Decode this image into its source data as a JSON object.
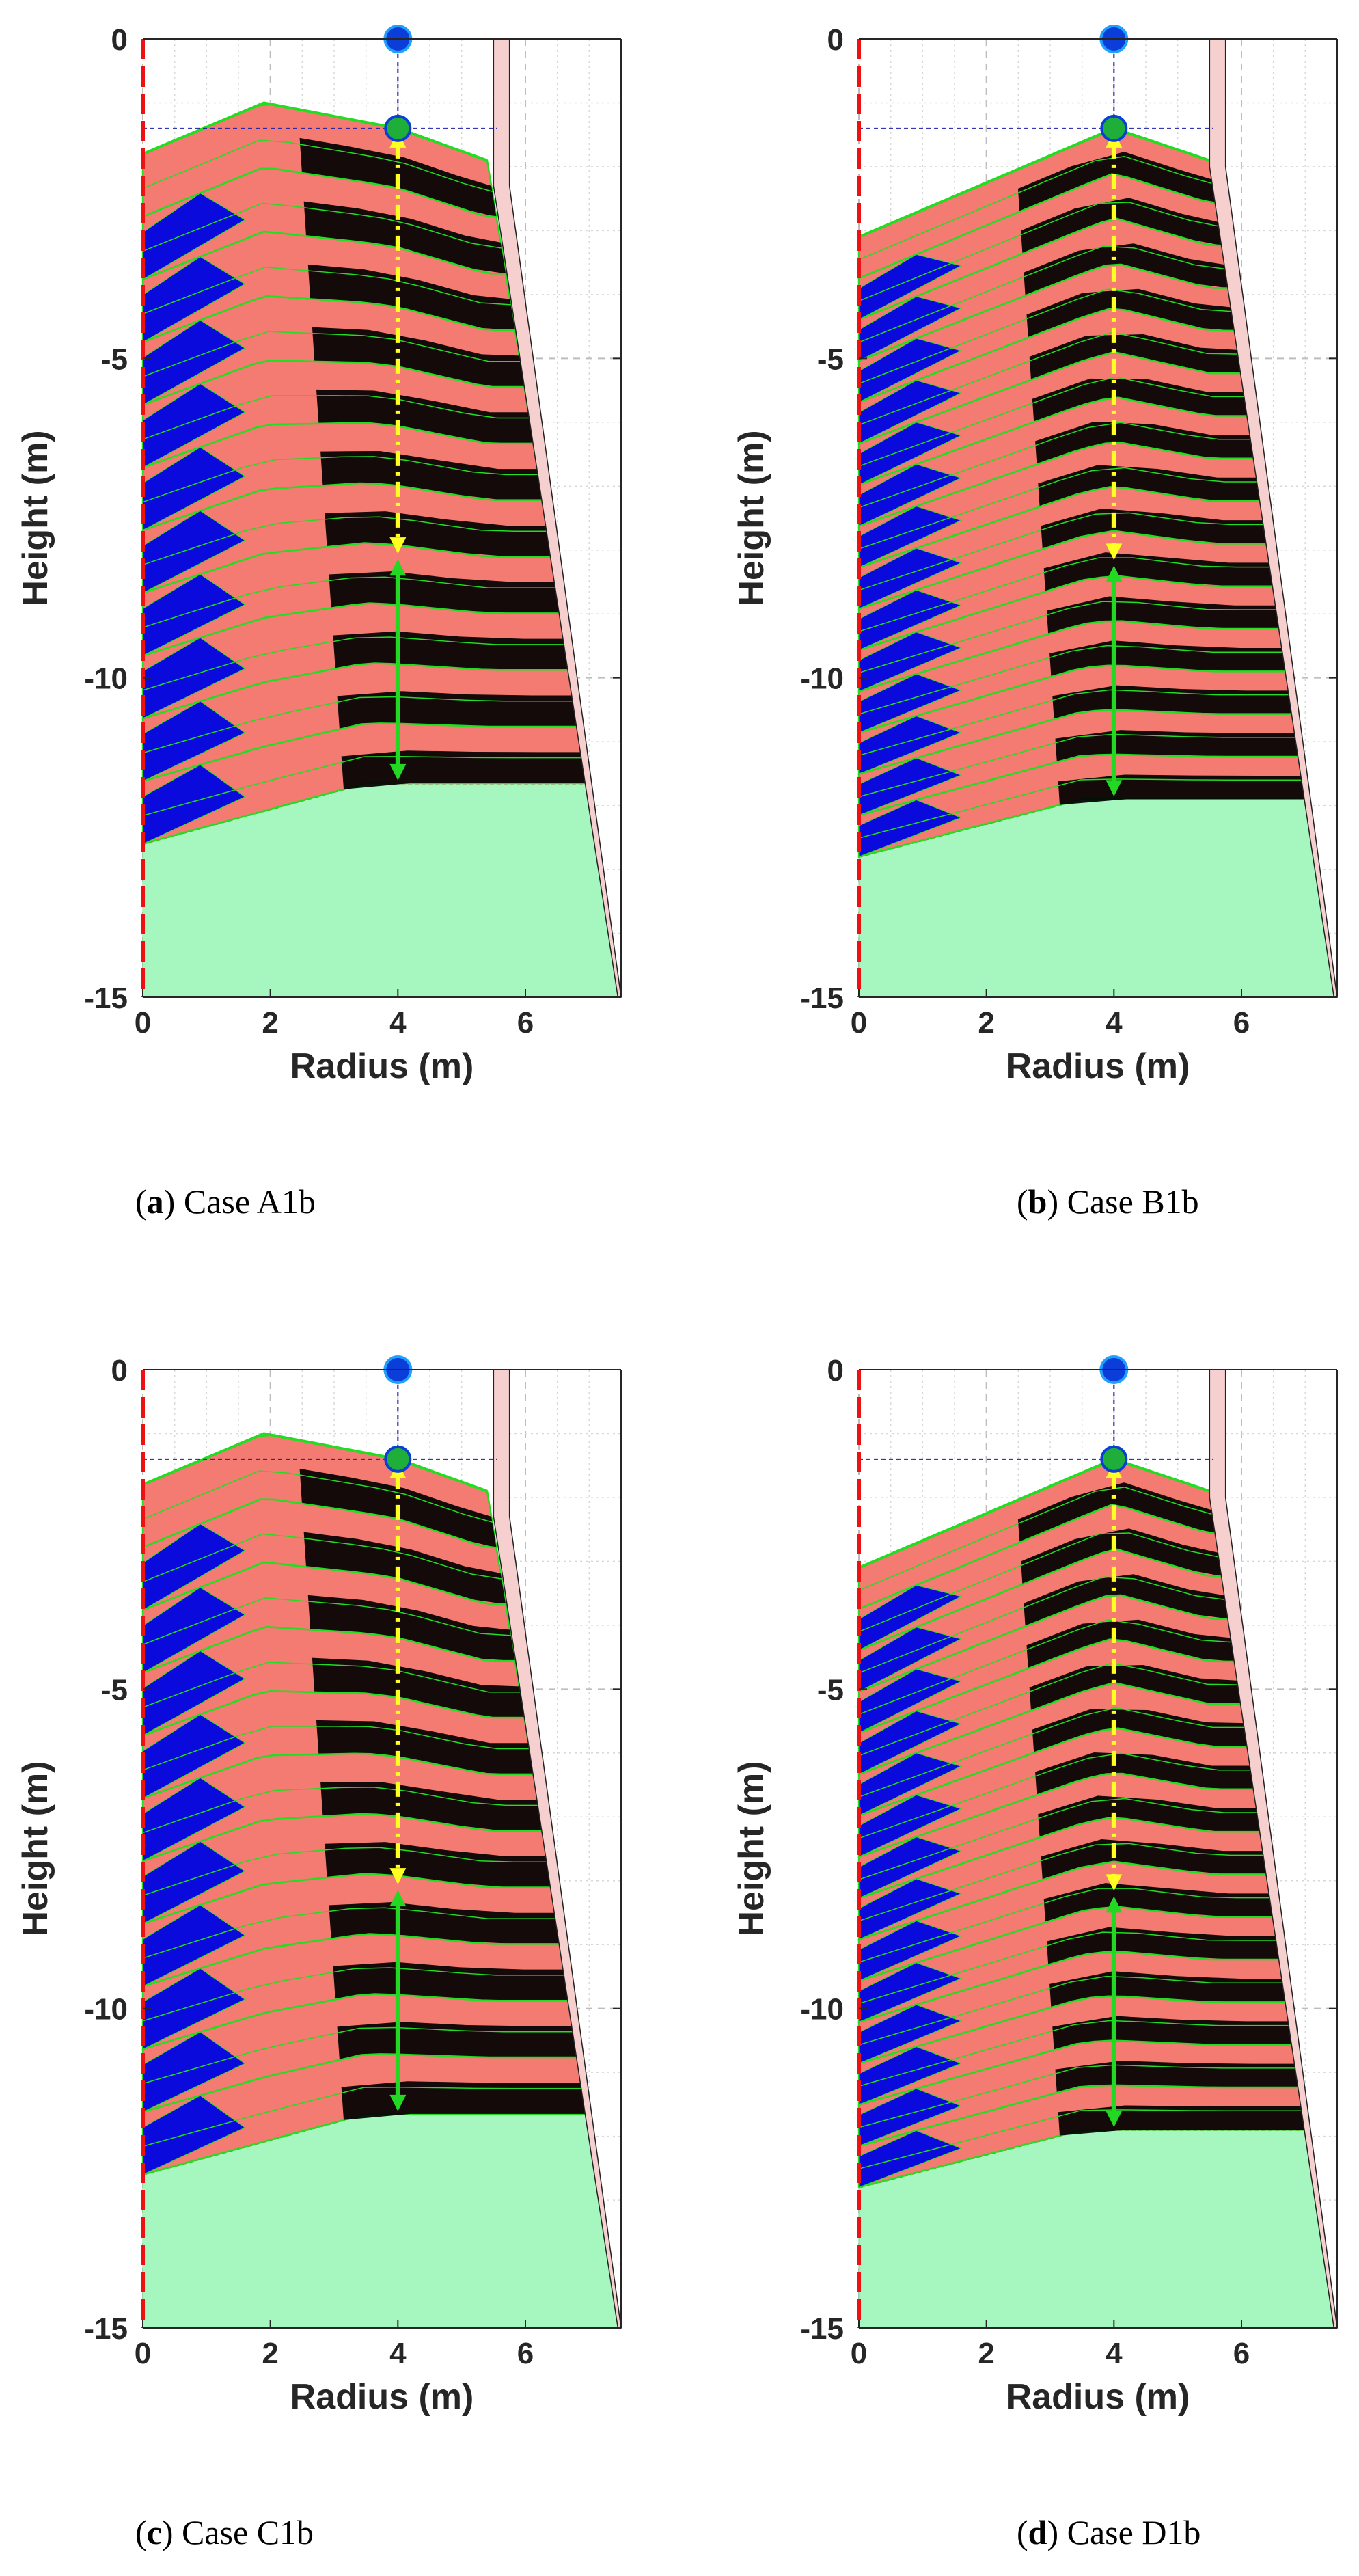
{
  "figure": {
    "panels": [
      {
        "id": "a",
        "caption_letter": "a",
        "caption_text": " Case A1b"
      },
      {
        "id": "b",
        "caption_letter": "b",
        "caption_text": " Case B1b"
      },
      {
        "id": "c",
        "caption_letter": "c",
        "caption_text": " Case C1b"
      },
      {
        "id": "d",
        "caption_letter": "d",
        "caption_text": " Case D1b"
      }
    ]
  },
  "colors": {
    "layer": "#f47b72",
    "dark_band": "#000000",
    "blue_wedge": "#0a0adc",
    "edge_green": "#22dd22",
    "base_fill": "#a6f7bf",
    "wall": "#f6cfcf",
    "probe_dot": "#0b3ed8",
    "yellow_arrow": "#ffff22",
    "green_arrow": "#22d822",
    "guide_line": "#1a1aa8",
    "axis_left_red": "#ee1111"
  },
  "chart_data": [
    {
      "type": "area",
      "panel": "a",
      "title": "",
      "xlabel": "Radius (m)",
      "ylabel": "Height (m)",
      "xlim": [
        0,
        7.5
      ],
      "ylim": [
        -15,
        0
      ],
      "xticks": [
        0,
        2,
        4,
        6
      ],
      "yticks": [
        0,
        -5,
        -10,
        -15
      ],
      "grid": true,
      "layer_count": 11,
      "top_profile": [
        [
          0,
          -1.8
        ],
        [
          1.9,
          -1.0
        ],
        [
          4.0,
          -1.4
        ],
        [
          5.4,
          -1.9
        ]
      ],
      "base_profile": [
        [
          0,
          -12.6
        ],
        [
          3.5,
          -11.65
        ],
        [
          7.0,
          -11.65
        ]
      ],
      "wall": {
        "top_radius": 5.5,
        "bottom_radius": 7.45,
        "break_height": -2.3
      },
      "probe_top": [
        4.0,
        0
      ],
      "probe_surface": [
        4.0,
        -1.4
      ],
      "yellow_arrow_y": [
        -1.4,
        -8.1
      ],
      "green_arrow_y": [
        -8.1,
        -11.65
      ]
    },
    {
      "type": "area",
      "panel": "b",
      "title": "",
      "xlabel": "Radius (m)",
      "ylabel": "Height (m)",
      "xlim": [
        0,
        7.5
      ],
      "ylim": [
        -15,
        0
      ],
      "xticks": [
        0,
        2,
        4,
        6
      ],
      "yticks": [
        0,
        -5,
        -10,
        -15
      ],
      "grid": true,
      "layer_count": 15,
      "top_profile": [
        [
          0,
          -3.1
        ],
        [
          4.0,
          -1.4
        ],
        [
          5.5,
          -1.9
        ]
      ],
      "base_profile": [
        [
          0,
          -12.8
        ],
        [
          3.5,
          -11.9
        ],
        [
          7.0,
          -11.9
        ]
      ],
      "wall": {
        "top_radius": 5.5,
        "bottom_radius": 7.45,
        "break_height": -2.0
      },
      "probe_top": [
        4.0,
        0
      ],
      "probe_surface": [
        4.0,
        -1.4
      ],
      "yellow_arrow_y": [
        -1.4,
        -8.2
      ],
      "green_arrow_y": [
        -8.2,
        -11.9
      ]
    },
    {
      "type": "area",
      "panel": "c",
      "title": "",
      "xlabel": "Radius (m)",
      "ylabel": "Height (m)",
      "xlim": [
        0,
        7.5
      ],
      "ylim": [
        -15,
        0
      ],
      "xticks": [
        0,
        2,
        4,
        6
      ],
      "yticks": [
        0,
        -5,
        -10,
        -15
      ],
      "grid": true,
      "layer_count": 11,
      "top_profile": [
        [
          0,
          -1.8
        ],
        [
          1.9,
          -1.0
        ],
        [
          4.0,
          -1.4
        ],
        [
          5.4,
          -1.9
        ]
      ],
      "base_profile": [
        [
          0,
          -12.6
        ],
        [
          3.5,
          -11.65
        ],
        [
          7.0,
          -11.65
        ]
      ],
      "wall": {
        "top_radius": 5.5,
        "bottom_radius": 7.45,
        "break_height": -2.3
      },
      "probe_top": [
        4.0,
        0
      ],
      "probe_surface": [
        4.0,
        -1.4
      ],
      "yellow_arrow_y": [
        -1.4,
        -8.1
      ],
      "green_arrow_y": [
        -8.1,
        -11.65
      ]
    },
    {
      "type": "area",
      "panel": "d",
      "title": "",
      "xlabel": "Radius (m)",
      "ylabel": "Height (m)",
      "xlim": [
        0,
        7.5
      ],
      "ylim": [
        -15,
        0
      ],
      "xticks": [
        0,
        2,
        4,
        6
      ],
      "yticks": [
        0,
        -5,
        -10,
        -15
      ],
      "grid": true,
      "layer_count": 15,
      "top_profile": [
        [
          0,
          -3.1
        ],
        [
          4.0,
          -1.4
        ],
        [
          5.5,
          -1.9
        ]
      ],
      "base_profile": [
        [
          0,
          -12.8
        ],
        [
          3.5,
          -11.9
        ],
        [
          7.0,
          -11.9
        ]
      ],
      "wall": {
        "top_radius": 5.5,
        "bottom_radius": 7.45,
        "break_height": -2.0
      },
      "probe_top": [
        4.0,
        0
      ],
      "probe_surface": [
        4.0,
        -1.4
      ],
      "yellow_arrow_y": [
        -1.4,
        -8.2
      ],
      "green_arrow_y": [
        -8.2,
        -11.9
      ]
    }
  ]
}
